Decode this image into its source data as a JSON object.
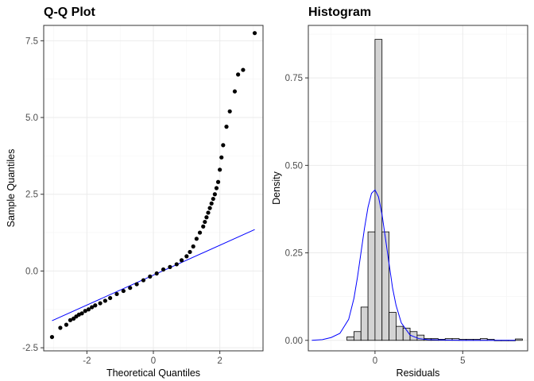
{
  "chart_data": [
    {
      "type": "scatter",
      "title": "Q-Q Plot",
      "xlabel": "Theoretical Quantiles",
      "ylabel": "Sample Quantiles",
      "xlim": [
        -3.3,
        3.3
      ],
      "ylim": [
        -2.6,
        8.0
      ],
      "xticks": [
        -2,
        0,
        2
      ],
      "yticks": [
        -2.5,
        0.0,
        2.5,
        5.0,
        7.5
      ],
      "yticklabels": [
        "-2.5",
        "0.0",
        "2.5",
        "5.0",
        "7.5"
      ],
      "grid": true,
      "reference_line": {
        "x": [
          -3.05,
          3.05
        ],
        "y": [
          -1.62,
          1.35
        ],
        "color": "#0000ff"
      },
      "series": [
        {
          "color": "#000000",
          "x": [
            -3.05,
            -2.8,
            -2.62,
            -2.5,
            -2.4,
            -2.32,
            -2.24,
            -2.15,
            -2.05,
            -1.95,
            -1.85,
            -1.75,
            -1.6,
            -1.45,
            -1.3,
            -1.1,
            -0.9,
            -0.7,
            -0.5,
            -0.3,
            -0.1,
            0.1,
            0.3,
            0.5,
            0.7,
            0.85,
            1.0,
            1.1,
            1.2,
            1.3,
            1.4,
            1.5,
            1.55,
            1.6,
            1.65,
            1.7,
            1.75,
            1.8,
            1.85,
            1.9,
            1.95,
            2.0,
            2.05,
            2.1,
            2.2,
            2.3,
            2.45,
            2.55,
            2.7,
            3.05
          ],
          "y": [
            -2.15,
            -1.85,
            -1.75,
            -1.6,
            -1.55,
            -1.48,
            -1.42,
            -1.38,
            -1.3,
            -1.25,
            -1.18,
            -1.12,
            -1.05,
            -0.97,
            -0.88,
            -0.75,
            -0.65,
            -0.55,
            -0.43,
            -0.3,
            -0.18,
            -0.08,
            0.05,
            0.13,
            0.22,
            0.35,
            0.48,
            0.62,
            0.8,
            1.05,
            1.25,
            1.45,
            1.6,
            1.75,
            1.9,
            2.05,
            2.2,
            2.35,
            2.5,
            2.7,
            2.9,
            3.3,
            3.7,
            4.1,
            4.7,
            5.2,
            5.85,
            6.4,
            6.55,
            7.75
          ]
        }
      ]
    },
    {
      "type": "bar",
      "title": "Histogram",
      "xlabel": "Residuals",
      "ylabel": "Density",
      "xlim": [
        -3.8,
        8.7
      ],
      "ylim": [
        -0.03,
        0.9
      ],
      "xticks": [
        0,
        5
      ],
      "yticks": [
        0.0,
        0.25,
        0.5,
        0.75
      ],
      "yticklabels": [
        "0.00",
        "0.25",
        "0.50",
        "0.75"
      ],
      "grid": true,
      "bin_width": 0.4,
      "bin_starts": [
        -1.6,
        -1.2,
        -0.8,
        -0.4,
        0.0,
        0.4,
        0.8,
        1.2,
        1.6,
        2.0,
        2.4,
        2.8,
        3.2,
        3.6,
        4.0,
        4.4,
        4.8,
        5.2,
        5.6,
        6.0,
        6.4,
        6.8,
        7.2,
        7.6,
        8.0
      ],
      "values": [
        0.01,
        0.025,
        0.095,
        0.31,
        0.86,
        0.31,
        0.08,
        0.04,
        0.035,
        0.025,
        0.015,
        0.005,
        0.005,
        0.003,
        0.005,
        0.005,
        0.003,
        0.003,
        0.003,
        0.005,
        0.003,
        0.0,
        0.0,
        0.0,
        0.004
      ],
      "bar_fill": "#d3d3d3",
      "bar_stroke": "#000000",
      "density_curve": {
        "color": "#0000ff",
        "x": [
          -3.6,
          -3.0,
          -2.5,
          -2.0,
          -1.5,
          -1.2,
          -1.0,
          -0.8,
          -0.6,
          -0.4,
          -0.2,
          0.0,
          0.2,
          0.4,
          0.6,
          0.8,
          1.0,
          1.2,
          1.5,
          2.0,
          2.5,
          3.0,
          4.0,
          5.0,
          6.0,
          7.0,
          8.0
        ],
        "y": [
          0.0,
          0.002,
          0.008,
          0.02,
          0.06,
          0.12,
          0.18,
          0.25,
          0.32,
          0.38,
          0.42,
          0.43,
          0.41,
          0.36,
          0.29,
          0.22,
          0.15,
          0.1,
          0.05,
          0.015,
          0.005,
          0.002,
          0.001,
          0.0,
          0.0,
          0.0,
          0.0
        ]
      }
    }
  ]
}
